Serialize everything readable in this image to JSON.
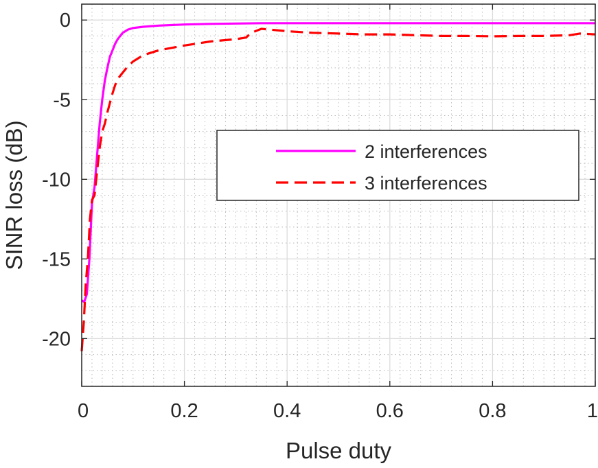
{
  "chart_data": {
    "type": "line",
    "xlabel": "Pulse duty",
    "ylabel": "SINR loss (dB)",
    "xlim": [
      0,
      1
    ],
    "ylim": [
      -23,
      1
    ],
    "x_ticks": [
      0,
      0.2,
      0.4,
      0.6,
      0.8,
      1
    ],
    "x_tick_labels": [
      "0",
      "0.2",
      "0.4",
      "0.6",
      "0.8",
      "1"
    ],
    "y_ticks": [
      0,
      -5,
      -10,
      -15,
      -20
    ],
    "y_tick_labels": [
      "0",
      "-5",
      "-10",
      "-15",
      "-20"
    ],
    "grid": true,
    "minor_grid": true,
    "legend_position": "center-right",
    "series": [
      {
        "name": "2 interferences",
        "color": "#ff00ff",
        "line_style": "solid",
        "x": [
          0.0,
          0.005,
          0.01,
          0.015,
          0.02,
          0.025,
          0.03,
          0.035,
          0.04,
          0.045,
          0.05,
          0.055,
          0.06,
          0.065,
          0.07,
          0.075,
          0.08,
          0.09,
          0.1,
          0.12,
          0.15,
          0.2,
          0.25,
          0.3,
          0.35,
          0.4,
          0.5,
          0.6,
          0.7,
          0.8,
          0.9,
          1.0
        ],
        "y": [
          -17.6,
          -17.7,
          -17.2,
          -15.0,
          -11.5,
          -10.5,
          -8.5,
          -6.5,
          -5.0,
          -3.8,
          -3.0,
          -2.3,
          -1.9,
          -1.5,
          -1.2,
          -1.0,
          -0.8,
          -0.6,
          -0.5,
          -0.42,
          -0.35,
          -0.28,
          -0.24,
          -0.22,
          -0.2,
          -0.2,
          -0.2,
          -0.2,
          -0.2,
          -0.2,
          -0.2,
          -0.2
        ]
      },
      {
        "name": "3 interferences",
        "color": "#ff0000",
        "line_style": "dashed",
        "x": [
          0.0,
          0.004,
          0.008,
          0.012,
          0.016,
          0.02,
          0.025,
          0.03,
          0.035,
          0.04,
          0.045,
          0.05,
          0.055,
          0.06,
          0.065,
          0.07,
          0.08,
          0.09,
          0.1,
          0.12,
          0.15,
          0.2,
          0.25,
          0.3,
          0.32,
          0.33,
          0.35,
          0.4,
          0.45,
          0.5,
          0.55,
          0.6,
          0.65,
          0.7,
          0.75,
          0.8,
          0.85,
          0.9,
          0.95,
          0.97,
          1.0
        ],
        "y": [
          -20.8,
          -19.0,
          -16.5,
          -15.0,
          -12.5,
          -11.3,
          -11.0,
          -9.5,
          -8.0,
          -7.0,
          -6.5,
          -5.8,
          -5.2,
          -4.6,
          -4.1,
          -3.7,
          -3.3,
          -2.9,
          -2.6,
          -2.2,
          -1.9,
          -1.6,
          -1.35,
          -1.2,
          -1.1,
          -0.8,
          -0.55,
          -0.7,
          -0.8,
          -0.85,
          -0.9,
          -0.9,
          -0.95,
          -1.0,
          -1.0,
          -1.02,
          -1.0,
          -1.0,
          -0.95,
          -0.85,
          -0.9
        ]
      }
    ]
  }
}
